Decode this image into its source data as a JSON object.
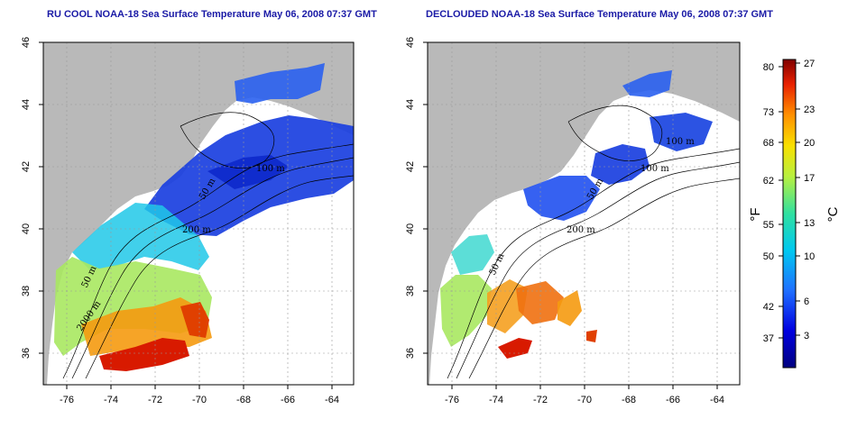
{
  "panels": [
    {
      "title": "RU COOL NOAA-18 Sea Surface Temperature May 06, 2008 07:37 GMT",
      "contour_labels": [
        "100 m",
        "50 m",
        "200 m",
        "50 m",
        "2000 m"
      ]
    },
    {
      "title": "DECLOUDED NOAA-18 Sea Surface Temperature May 06, 2008 07:37 GMT",
      "contour_labels": [
        "100 m",
        "100 m",
        "50 m",
        "200 m",
        "50 m"
      ]
    }
  ],
  "axes": {
    "lon_ticks": [
      "-76",
      "-74",
      "-72",
      "-70",
      "-68",
      "-66",
      "-64"
    ],
    "lat_ticks": [
      "46",
      "44",
      "42",
      "40",
      "38",
      "36"
    ]
  },
  "colorbar": {
    "fahrenheit_ticks": [
      "80",
      "73",
      "68",
      "62",
      "55",
      "50",
      "42",
      "37"
    ],
    "celsius_ticks": [
      "27",
      "23",
      "20",
      "17",
      "13",
      "10",
      "6",
      "3"
    ],
    "fahrenheit_label": "°F",
    "celsius_label": "°C"
  },
  "colors": {
    "land": "#b9b9b9",
    "title": "#1a1aa6",
    "cold": "#0000a8",
    "warm": "#cc0000"
  }
}
